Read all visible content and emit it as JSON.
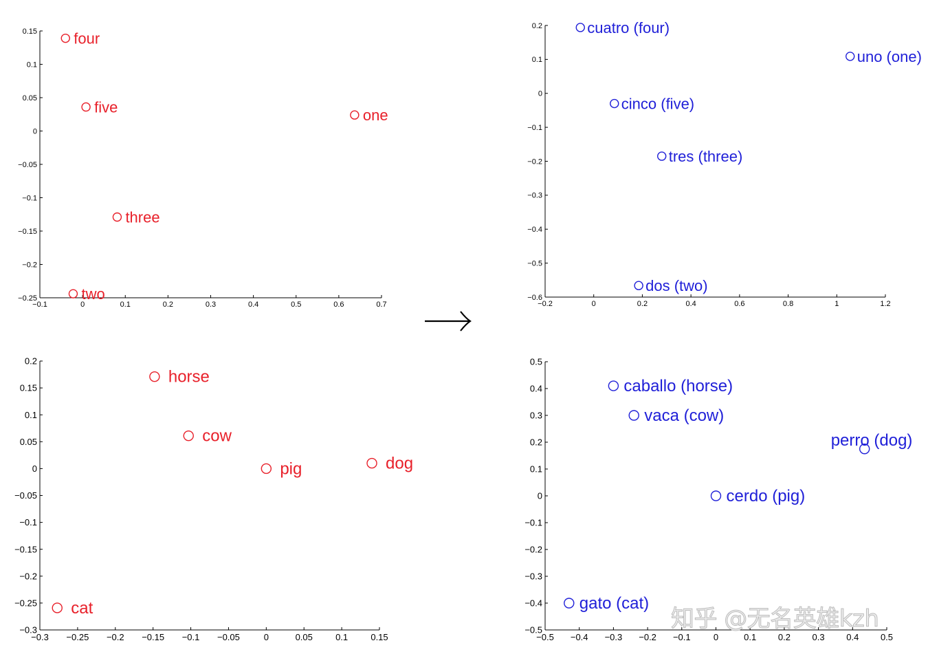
{
  "colors": {
    "english": "#e8202a",
    "spanish": "#2020d8",
    "axis": "#000000"
  },
  "arrow": {
    "glyph": "→",
    "icon": "right-arrow-icon"
  },
  "watermark": "知乎 @无名英雄kzh",
  "chart_data": [
    {
      "id": "numbers-en",
      "type": "scatter",
      "series": [
        {
          "color": "#e8202a",
          "marker": "open-circle"
        }
      ],
      "points": [
        {
          "label": "four",
          "x": -0.04,
          "y": 0.139
        },
        {
          "label": "five",
          "x": 0.008,
          "y": 0.036
        },
        {
          "label": "one",
          "x": 0.637,
          "y": 0.024
        },
        {
          "label": "three",
          "x": 0.081,
          "y": -0.129
        },
        {
          "label": "two",
          "x": -0.022,
          "y": -0.244
        }
      ],
      "xlim": [
        -0.1,
        0.7
      ],
      "ylim": [
        -0.25,
        0.15
      ],
      "xticks": [
        "-0.1",
        "0",
        "0.1",
        "0.2",
        "0.3",
        "0.4",
        "0.5",
        "0.6",
        "0.7"
      ],
      "yticks": [
        "0.15",
        "0.1",
        "0.05",
        "0",
        "-0.05",
        "-0.1",
        "-0.15",
        "-0.2",
        "-0.25"
      ],
      "grid": false
    },
    {
      "id": "numbers-es",
      "type": "scatter",
      "series": [
        {
          "color": "#2020d8",
          "marker": "open-circle"
        }
      ],
      "points": [
        {
          "label": "cuatro (four)",
          "x": -0.055,
          "y": 0.194
        },
        {
          "label": "uno (one)",
          "x": 1.055,
          "y": 0.109
        },
        {
          "label": "cinco (five)",
          "x": 0.085,
          "y": -0.03
        },
        {
          "label": "tres (three)",
          "x": 0.28,
          "y": -0.185
        },
        {
          "label": "dos (two)",
          "x": 0.185,
          "y": -0.566
        }
      ],
      "xlim": [
        -0.2,
        1.2
      ],
      "ylim": [
        -0.6,
        0.2
      ],
      "xticks": [
        "-0.2",
        "0",
        "0.2",
        "0.4",
        "0.6",
        "0.8",
        "1",
        "1.2"
      ],
      "yticks": [
        "0.2",
        "0.1",
        "0",
        "-0.1",
        "-0.2",
        "-0.3",
        "-0.4",
        "-0.5",
        "-0.6"
      ],
      "grid": false
    },
    {
      "id": "animals-en",
      "type": "scatter",
      "series": [
        {
          "color": "#e8202a",
          "marker": "open-circle"
        }
      ],
      "points": [
        {
          "label": "horse",
          "x": -0.148,
          "y": 0.171
        },
        {
          "label": "cow",
          "x": -0.103,
          "y": 0.061
        },
        {
          "label": "pig",
          "x": 0.0,
          "y": 0.0
        },
        {
          "label": "dog",
          "x": 0.14,
          "y": 0.01
        },
        {
          "label": "cat",
          "x": -0.277,
          "y": -0.259
        }
      ],
      "xlim": [
        -0.3,
        0.15
      ],
      "ylim": [
        -0.3,
        0.2
      ],
      "xticks": [
        "-0.3",
        "-0.25",
        "-0.2",
        "-0.15",
        "-0.1",
        "-0.05",
        "0",
        "0.05",
        "0.1",
        "0.15"
      ],
      "yticks": [
        "0.2",
        "0.15",
        "0.1",
        "0.05",
        "0",
        "-0.05",
        "-0.1",
        "-0.15",
        "-0.2",
        "-0.25",
        "-0.3"
      ],
      "grid": false
    },
    {
      "id": "animals-es",
      "type": "scatter",
      "series": [
        {
          "color": "#2020d8",
          "marker": "open-circle"
        }
      ],
      "points": [
        {
          "label": "caballo (horse)",
          "x": -0.3,
          "y": 0.41
        },
        {
          "label": "vaca (cow)",
          "x": -0.24,
          "y": 0.3
        },
        {
          "label": "perro (dog)",
          "x": 0.435,
          "y": 0.175
        },
        {
          "label": "cerdo (pig)",
          "x": 0.0,
          "y": 0.0
        },
        {
          "label": "gato (cat)",
          "x": -0.43,
          "y": -0.4
        }
      ],
      "xlim": [
        -0.5,
        0.5
      ],
      "ylim": [
        -0.5,
        0.5
      ],
      "xticks": [
        "-0.5",
        "-0.4",
        "-0.3",
        "-0.2",
        "-0.1",
        "0",
        "0.1",
        "0.2",
        "0.3",
        "0.4",
        "0.5"
      ],
      "yticks": [
        "0.5",
        "0.4",
        "0.3",
        "0.2",
        "0.1",
        "0",
        "-0.1",
        "-0.2",
        "-0.3",
        "-0.4",
        "-0.5"
      ],
      "grid": false
    }
  ]
}
